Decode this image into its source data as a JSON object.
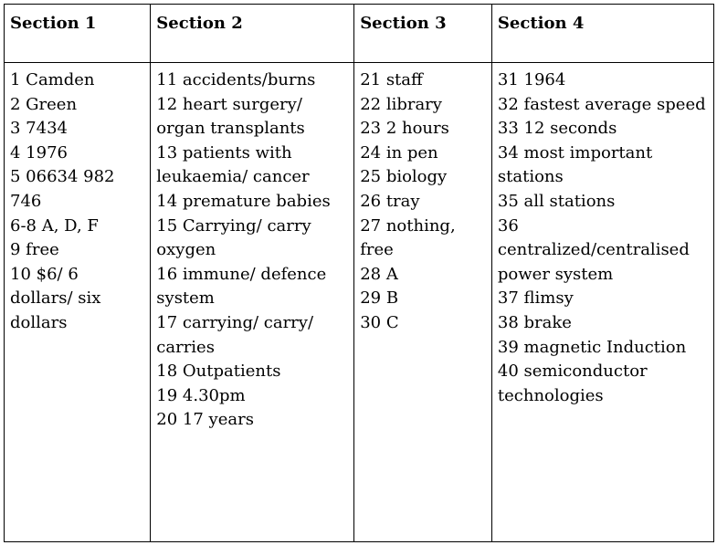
{
  "headers": [
    "Section 1",
    "Section 2",
    "Section 3",
    "Section 4"
  ],
  "sections": [
    {
      "answers": [
        "1 Camden",
        "2 Green",
        "3 7434",
        "4 1976",
        "5 06634 982 746",
        "6-8 A, D, F",
        "9 free",
        "10 $6/ 6 dollars/ six dollars"
      ]
    },
    {
      "answers": [
        "11 accidents/burns",
        "12 heart surgery/ organ transplants",
        "13 patients with leukaemia/ cancer",
        "14 premature babies",
        "15 Carrying/ carry oxygen",
        "16 immune/ defence system",
        "17 carrying/ carry/ carries",
        "18 Outpatients",
        "19 4.30pm",
        "20 17 years"
      ]
    },
    {
      "answers": [
        "21 staff",
        "22 library",
        "23 2 hours",
        "24 in pen",
        "25 biology",
        "26 tray",
        "27 nothing, free",
        "28 A",
        "29 B",
        "30 C"
      ]
    },
    {
      "answers": [
        "31 1964",
        "32 fastest average speed",
        "33 12 seconds",
        "34 most important stations",
        "35 all stations",
        "36 centralized/centralised power system",
        "37 flimsy",
        "38 brake",
        "39 magnetic Induction",
        "40 semiconductor technologies"
      ]
    }
  ]
}
